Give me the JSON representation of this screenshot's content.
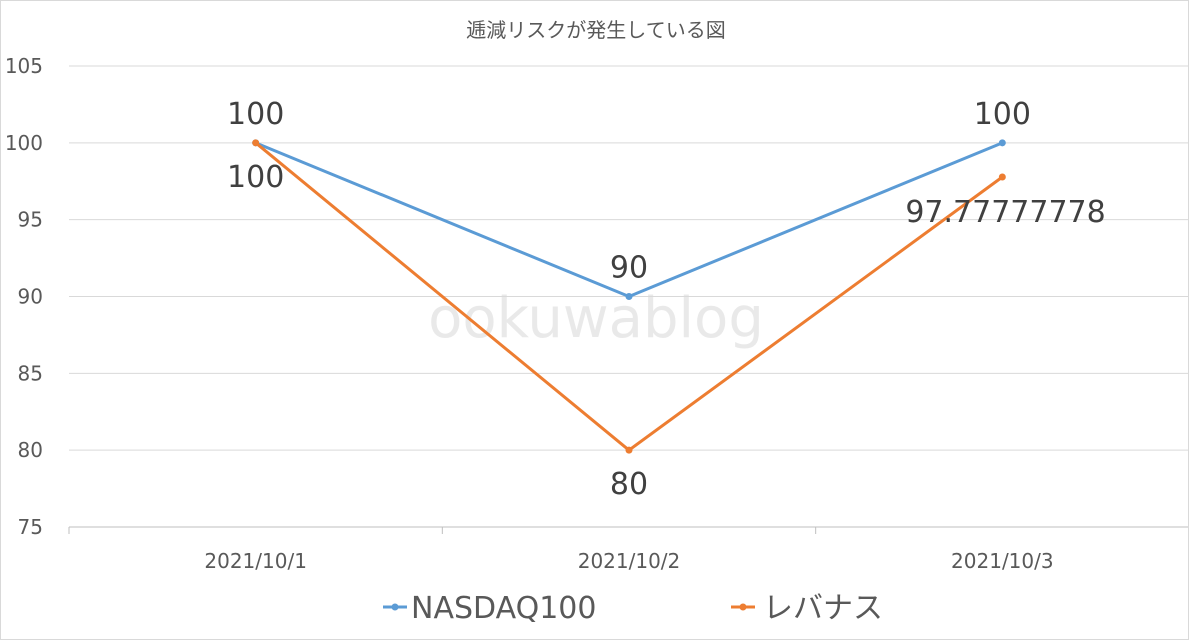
{
  "chart_data": {
    "type": "line",
    "title": "逓減リスクが発生している図",
    "categories": [
      "2021/10/1",
      "2021/10/2",
      "2021/10/3"
    ],
    "series": [
      {
        "name": "NASDAQ100",
        "values": [
          100,
          90,
          100
        ],
        "labels": [
          "100",
          "90",
          "100"
        ],
        "color": "#5b9bd5"
      },
      {
        "name": "レバナス",
        "values": [
          100,
          80,
          97.77777778
        ],
        "labels": [
          "100",
          "80",
          "97.77777778"
        ],
        "color": "#ed7d31"
      }
    ],
    "ylim": [
      75,
      105
    ],
    "yticks": [
      75,
      80,
      85,
      90,
      95,
      100,
      105
    ],
    "grid": true,
    "legend_position": "bottom",
    "watermark": "ookuwablog"
  }
}
